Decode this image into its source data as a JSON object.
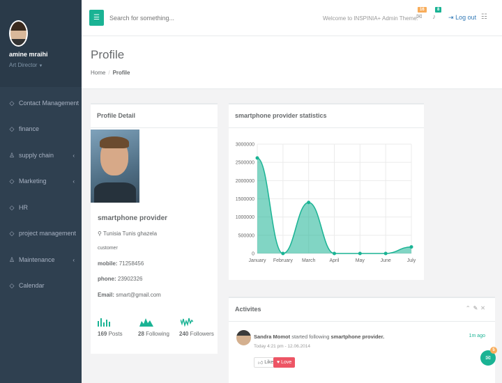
{
  "sidebar": {
    "user_name": "amine mraihi",
    "user_role": "Art Director",
    "items": [
      {
        "label": "Contact Management",
        "icon": "diamond-icon",
        "chevron": false
      },
      {
        "label": "finance",
        "icon": "diamond-icon",
        "chevron": false
      },
      {
        "label": "supply chain",
        "icon": "sitemap-icon",
        "chevron": true
      },
      {
        "label": "Marketing",
        "icon": "diamond-icon",
        "chevron": true
      },
      {
        "label": "HR",
        "icon": "diamond-icon",
        "chevron": false
      },
      {
        "label": "project management",
        "icon": "diamond-icon",
        "chevron": false
      },
      {
        "label": "Maintenance",
        "icon": "sitemap-icon",
        "chevron": true
      },
      {
        "label": "Calendar",
        "icon": "diamond-icon",
        "chevron": false
      }
    ]
  },
  "topbar": {
    "search_placeholder": "Search for something...",
    "welcome": "Welcome to INSPINIA+ Admin Theme.",
    "mail_count": "16",
    "bell_count": "8",
    "logout_label": "Log out",
    "accent": "#1ab394"
  },
  "page": {
    "title": "Profile",
    "breadcrumb_home": "Home",
    "breadcrumb_current": "Profile"
  },
  "profile": {
    "box_title": "Profile Detail",
    "name": "smartphone provider",
    "location": "Tunisia Tunis ghazela",
    "type": "customer",
    "mobile_label": "mobile:",
    "mobile": "71258456",
    "phone_label": "phone:",
    "phone": "23902326",
    "email_label": "Email:",
    "email": "smart@gmail.com",
    "stats": [
      {
        "value": "169",
        "label": "Posts"
      },
      {
        "value": "28",
        "label": "Following"
      },
      {
        "value": "240",
        "label": "Followers"
      }
    ]
  },
  "chart_box": {
    "title": "smartphone provider statistics"
  },
  "chart_data": {
    "type": "area",
    "categories": [
      "January",
      "February",
      "March",
      "April",
      "May",
      "June",
      "July"
    ],
    "values": [
      2620000,
      0,
      1400000,
      0,
      0,
      0,
      180000
    ],
    "ylim": [
      0,
      3000000
    ],
    "yticks": [
      "0",
      "500000",
      "1000000",
      "1500000",
      "2000000",
      "2500000",
      "3000000"
    ],
    "title": "",
    "xlabel": "",
    "ylabel": "",
    "grid": true,
    "color": "#1ab394"
  },
  "activity": {
    "box_title": "Activites",
    "user": "Sandra Momot",
    "action": "started following",
    "target": "smartphone provider.",
    "time_ago": "1m ago",
    "date": "Today 4:21 pm - 12.06.2014",
    "like_label": "Like",
    "love_label": "Love"
  },
  "chat": {
    "badge": "5"
  }
}
